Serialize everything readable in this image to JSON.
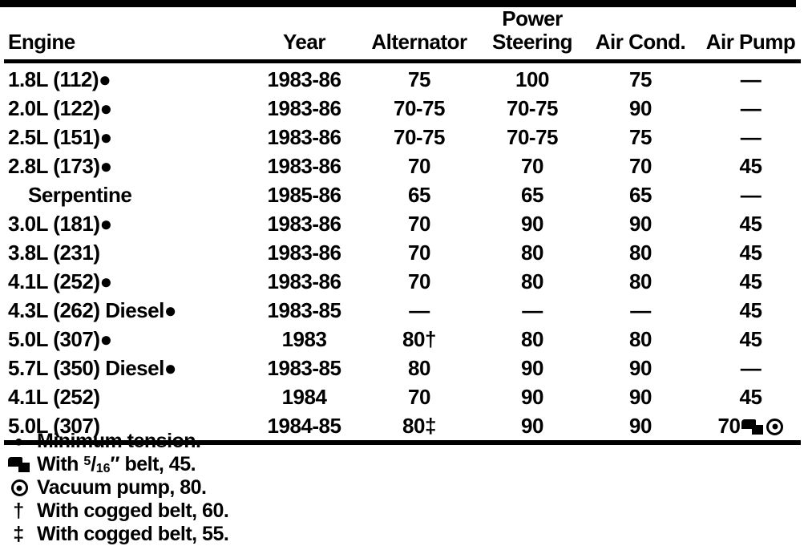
{
  "table": {
    "columns": [
      "Engine",
      "Year",
      "Alternator",
      "Power Steering",
      "Air Cond.",
      "Air Pump"
    ],
    "column_keys": [
      "engine",
      "year",
      "alternator",
      "power-steering",
      "air-cond",
      "air-pump"
    ],
    "rows": [
      {
        "cells": [
          "1.8L (112)●",
          "1983-86",
          "75",
          "100",
          "75",
          "—"
        ]
      },
      {
        "cells": [
          "2.0L (122)●",
          "1983-86",
          "70-75",
          "70-75",
          "90",
          "—"
        ]
      },
      {
        "cells": [
          "2.5L (151)●",
          "1983-86",
          "70-75",
          "70-75",
          "75",
          "—"
        ]
      },
      {
        "cells": [
          "2.8L (173)●",
          "1983-86",
          "70",
          "70",
          "70",
          "45"
        ]
      },
      {
        "cells": [
          "Serpentine",
          "1985-86",
          "65",
          "65",
          "65",
          "—"
        ],
        "indent": true
      },
      {
        "cells": [
          "3.0L (181)●",
          "1983-86",
          "70",
          "90",
          "90",
          "45"
        ]
      },
      {
        "cells": [
          "3.8L (231)",
          "1983-86",
          "70",
          "80",
          "80",
          "45"
        ]
      },
      {
        "cells": [
          "4.1L (252)●",
          "1983-86",
          "70",
          "80",
          "80",
          "45"
        ]
      },
      {
        "cells": [
          "4.3L (262) Diesel●",
          "1983-85",
          "—",
          "—",
          "—",
          "45"
        ]
      },
      {
        "cells": [
          "5.0L (307)●",
          "1983",
          "80†",
          "80",
          "80",
          "45"
        ]
      },
      {
        "cells": [
          "5.7L (350) Diesel●",
          "1983-85",
          "80",
          "90",
          "90",
          "—"
        ]
      },
      {
        "cells": [
          "4.1L (252)",
          "1984",
          "70",
          "90",
          "90",
          "45"
        ]
      },
      {
        "cells": [
          "5.0L (307)",
          "1984-85",
          "80‡",
          "90",
          "90",
          {
            "text": "70",
            "icons": [
              "overlapping-squares",
              "circled-dot"
            ]
          }
        ]
      }
    ]
  },
  "footnotes": [
    {
      "symbol": "bullet",
      "symbol_char": "●",
      "text": "Minimum tension."
    },
    {
      "symbol": "overlapping-squares",
      "text_before": "With ",
      "fraction_numerator": "5",
      "fraction_slash": "/",
      "fraction_denominator": "16",
      "text_after": "″ belt, 45."
    },
    {
      "symbol": "circled-dot",
      "text": "Vacuum pump, 80."
    },
    {
      "symbol": "dagger",
      "symbol_char": "†",
      "text": "With cogged belt, 60."
    },
    {
      "symbol": "double-dagger",
      "symbol_char": "‡",
      "text": "With cogged belt, 55."
    }
  ],
  "colors": {
    "ink": "#000000",
    "paper": "#ffffff"
  }
}
